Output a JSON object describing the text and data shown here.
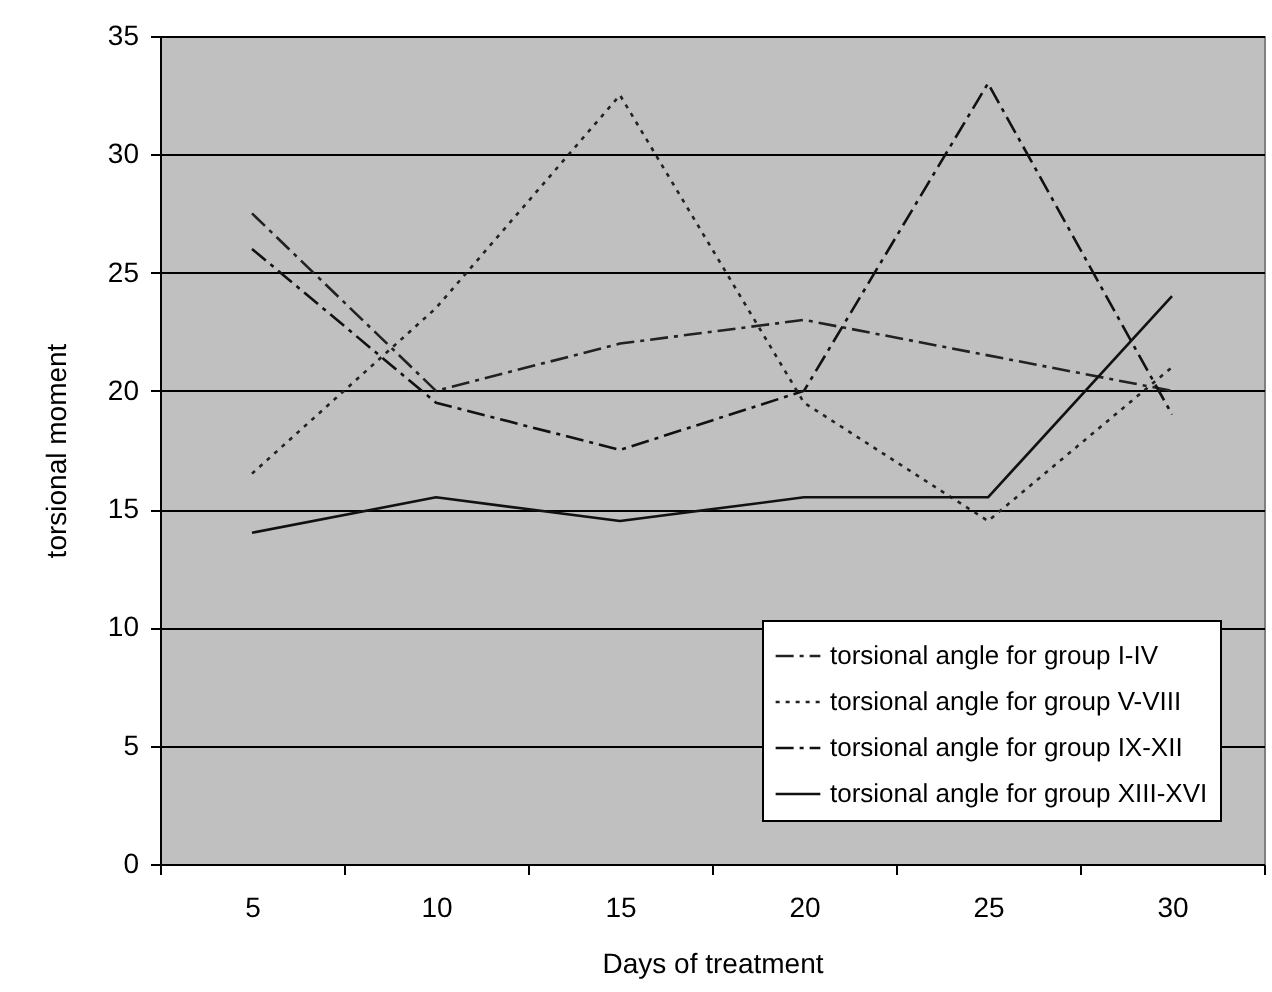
{
  "chart_data": {
    "type": "line",
    "xlabel": "Days of treatment",
    "ylabel": "torsional moment",
    "categories": [
      "5",
      "10",
      "15",
      "20",
      "25",
      "30"
    ],
    "ylim": [
      0,
      35
    ],
    "yticks": [
      0,
      5,
      10,
      15,
      20,
      25,
      30,
      35
    ],
    "grid": "y",
    "legend": "bottom right",
    "marker": "none",
    "series": [
      {
        "name": "torsional angle for group I-IV",
        "color": "#222222",
        "line_style": "dashed",
        "values": [
          27.5,
          20,
          22,
          23,
          21.5,
          20
        ]
      },
      {
        "name": "torsional angle for group V-VIII",
        "color": "#222222",
        "line_style": "dotted",
        "values": [
          16.5,
          23.5,
          32.5,
          19.5,
          14.5,
          21
        ]
      },
      {
        "name": "torsional angle for group IX-XII",
        "color": "#111111",
        "line_style": "dashed",
        "values": [
          26,
          19.5,
          17.5,
          20,
          33,
          19
        ]
      },
      {
        "name": "torsional angle for group XIII-XVI",
        "color": "#111111",
        "line_style": "solid",
        "values": [
          14,
          15.5,
          14.5,
          15.5,
          15.5,
          24
        ]
      }
    ]
  }
}
